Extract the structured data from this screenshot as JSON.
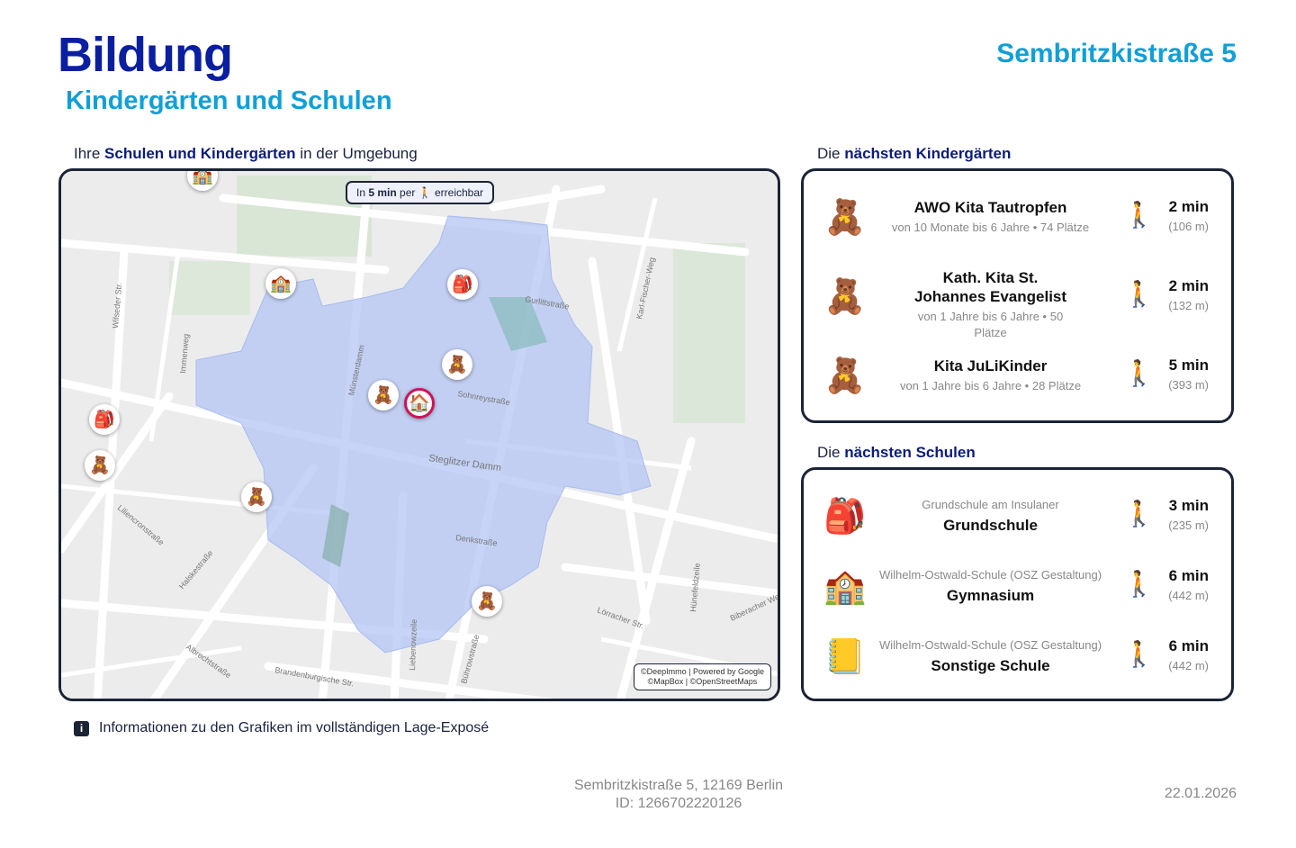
{
  "header": {
    "title": "Bildung",
    "subtitle": "Kindergärten und Schulen",
    "address": "Sembritzkistraße 5"
  },
  "map_section": {
    "prefix": "Ihre ",
    "bold": "Schulen und Kindergärten",
    "suffix": " in der Umgebung",
    "badge": {
      "prefix": "In ",
      "bold": "5 min",
      "middle": " per ",
      "icon": "walking-person-icon",
      "suffix": " erreichbar"
    },
    "attribution": {
      "line1": "©DeepImmo | Powered by Google",
      "line2": "©MapBox | ©OpenStreetMaps"
    },
    "streets": [
      "Gurlittstraße",
      "Karl-Fischer-Weg",
      "Münsterdamm",
      "Sohnreystraße",
      "Steglitzer Damm",
      "Denkstraße",
      "Liliencronstraße",
      "Halskestraße",
      "Albrechtstraße",
      "Brandenburgische Str.",
      "Liebenowzeile",
      "Bührowstraße",
      "Lörracher Str.",
      "Hünefeldzeile",
      "Wilseder Str.",
      "Immenweg",
      "Biberacher Weg"
    ],
    "isochrone_color": "#b4c6f4"
  },
  "kita_section": {
    "prefix": "Die ",
    "bold": "nächsten Kindergärten",
    "items": [
      {
        "name": "AWO Kita Tautropfen",
        "details": "von 10 Monate bis 6 Jahre • 74 Plätze",
        "time": "2 min",
        "distance": "(106 m)",
        "icon": "teddy-bear-icon"
      },
      {
        "name": "Kath. Kita St. Johannes Evangelist",
        "details": "von 1 Jahre bis 6 Jahre • 50 Plätze",
        "time": "2 min",
        "distance": "(132 m)",
        "icon": "teddy-bear-icon"
      },
      {
        "name": "Kita JuLiKinder",
        "details": "von 1 Jahre bis 6 Jahre • 28 Plätze",
        "time": "5 min",
        "distance": "(393 m)",
        "icon": "teddy-bear-icon"
      }
    ]
  },
  "school_section": {
    "prefix": "Die ",
    "bold": "nächsten Schulen",
    "items": [
      {
        "name": "Grundschule am Insulaner",
        "type": "Grundschule",
        "time": "3 min",
        "distance": "(235 m)",
        "icon": "backpack-icon"
      },
      {
        "name": "Wilhelm-Ostwald-Schule (OSZ Gestaltung)",
        "type": "Gymnasium",
        "time": "6 min",
        "distance": "(442 m)",
        "icon": "school-building-icon"
      },
      {
        "name": "Wilhelm-Ostwald-Schule (OSZ Gestaltung)",
        "type": "Sonstige Schule",
        "time": "6 min",
        "distance": "(442 m)",
        "icon": "notebook-icon"
      }
    ]
  },
  "info": "Informationen zu den Grafiken im vollständigen Lage-Exposé",
  "footer": {
    "address": "Sembritzkistraße 5, 12169 Berlin",
    "id": "ID: 1266702220126",
    "date": "22.01.2026"
  }
}
